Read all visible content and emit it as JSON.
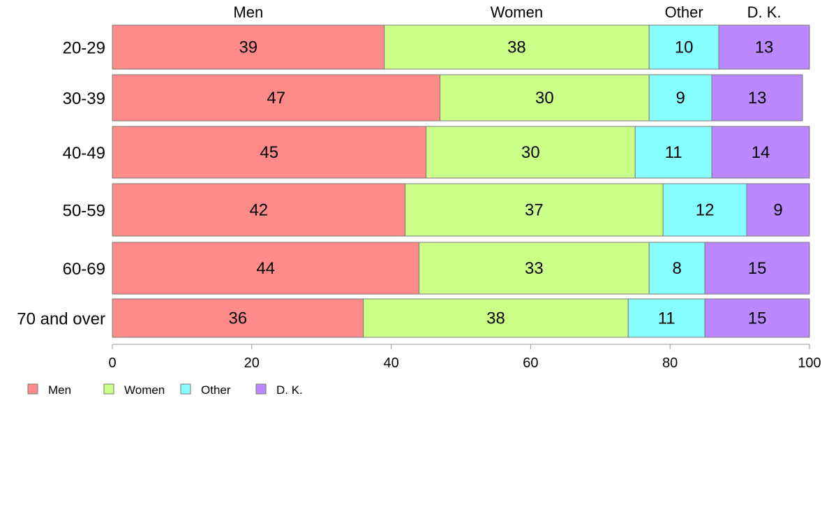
{
  "chart_data": {
    "type": "bar",
    "orientation": "horizontal",
    "stacked": true,
    "categories": [
      "20-29",
      "30-39",
      "40-49",
      "50-59",
      "60-69",
      "70 and over"
    ],
    "series": [
      {
        "name": "Men",
        "color": "#ff8a8a",
        "values": [
          39,
          47,
          45,
          42,
          44,
          36
        ]
      },
      {
        "name": "Women",
        "color": "#ccff88",
        "values": [
          38,
          30,
          30,
          37,
          33,
          38
        ]
      },
      {
        "name": "Other",
        "color": "#88ffff",
        "values": [
          10,
          9,
          11,
          12,
          8,
          11
        ]
      },
      {
        "name": "D. K.",
        "color": "#bb88ff",
        "values": [
          13,
          13,
          14,
          9,
          15,
          15
        ]
      }
    ],
    "xlim": [
      0,
      100
    ],
    "xticks": [
      0,
      20,
      40,
      60,
      80,
      100
    ],
    "grid": false,
    "legend": "bottom-left",
    "column_headers": [
      "Men",
      "Women",
      "Other",
      "D. K."
    ]
  }
}
